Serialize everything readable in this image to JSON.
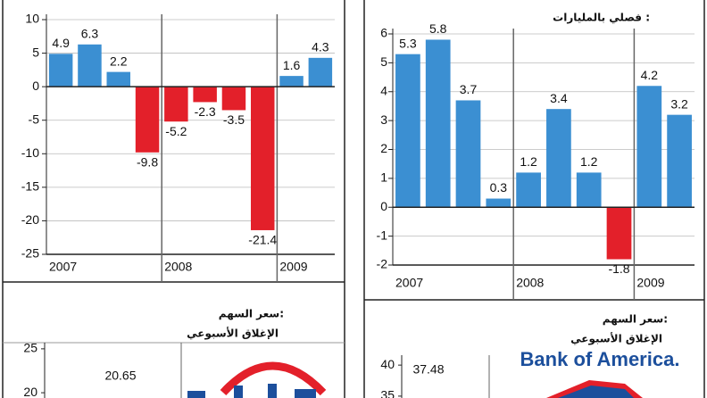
{
  "chart_data": [
    {
      "type": "bar",
      "categories": [
        "2007",
        "2007",
        "2007",
        "2007",
        "2008",
        "2008",
        "2008",
        "2008",
        "2009",
        "2009"
      ],
      "values": [
        4.9,
        6.3,
        2.2,
        -9.8,
        -5.2,
        -2.3,
        -3.5,
        -21.4,
        1.6,
        4.3
      ],
      "positive_color": "#3b8fd2",
      "negative_color": "#e3202a",
      "ylim": [
        -25,
        10
      ],
      "yticks": [
        10,
        5,
        0,
        -5,
        -10,
        -15,
        -20,
        -25
      ],
      "grid": true
    },
    {
      "type": "bar",
      "subtitle": "فصلي بالمليارات :",
      "categories": [
        "2007",
        "2007",
        "2007",
        "2007",
        "2008",
        "2008",
        "2008",
        "2008",
        "2009",
        "2009"
      ],
      "values": [
        5.3,
        5.8,
        3.7,
        0.3,
        1.2,
        3.4,
        1.2,
        -1.8,
        4.2,
        3.2
      ],
      "positive_color": "#3b8fd2",
      "negative_color": "#e3202a",
      "ylim": [
        -2,
        6
      ],
      "yticks": [
        6,
        5,
        4,
        3,
        2,
        1,
        0,
        -1,
        -2
      ],
      "grid": true
    },
    {
      "type": "price",
      "title": "سعر السهم:",
      "subtitle": "الإغلاق الأسبوعي",
      "ylim": [
        19.4,
        25.7
      ],
      "yticks": [
        25,
        20
      ],
      "annotation": "20.65"
    },
    {
      "type": "price",
      "title": "سعر السهم:",
      "subtitle": "الإغلاق الأسبوعي",
      "logo_text": "Bank of America.",
      "ylim": [
        34.7,
        41.6
      ],
      "yticks": [
        40,
        35
      ],
      "annotation": "37.48"
    }
  ]
}
